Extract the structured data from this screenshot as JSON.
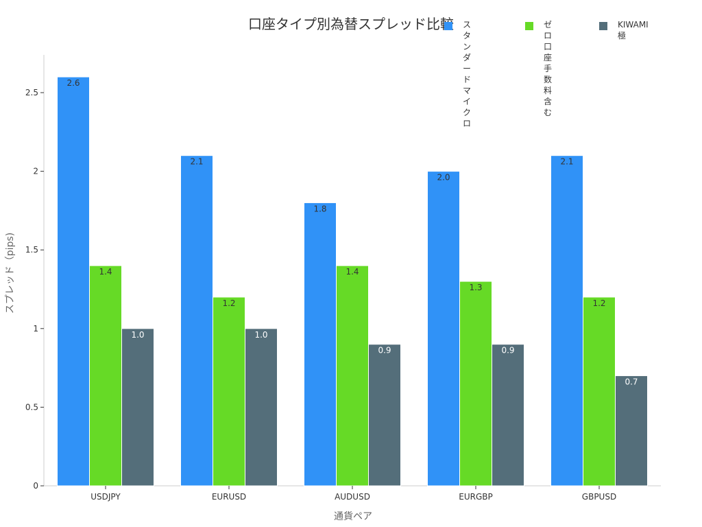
{
  "chart_data": {
    "type": "bar",
    "title": "口座タイプ別為替スプレッド比較",
    "xlabel": "通貨ペア",
    "ylabel": "スプレッド（pips)",
    "categories": [
      "USDJPY",
      "EURUSD",
      "AUDUSD",
      "EURGBP",
      "GBPUSD"
    ],
    "series": [
      {
        "name": "スタンダード\nマイクロ",
        "color": "#3092f7",
        "values": [
          2.6,
          2.1,
          1.8,
          2.0,
          2.1
        ]
      },
      {
        "name": "ゼロ口座\n手数料含む",
        "color": "#66da26",
        "values": [
          1.4,
          1.2,
          1.4,
          1.3,
          1.2
        ]
      },
      {
        "name": "KIWAMI極",
        "color": "#546e7a",
        "values": [
          1.0,
          1.0,
          0.9,
          0.9,
          0.7
        ]
      }
    ],
    "data_labels": [
      [
        "2.6",
        "2.1",
        "1.8",
        "2.0",
        "2.1"
      ],
      [
        "1.4",
        "1.2",
        "1.4",
        "1.3",
        "1.2"
      ],
      [
        "1.0",
        "1.0",
        "0.9",
        "0.9",
        "0.7"
      ]
    ],
    "y_ticks": [
      "0",
      "0.5",
      "1",
      "1.5",
      "2",
      "2.5"
    ],
    "ylim": [
      0,
      2.74
    ],
    "grid": false,
    "legend_position": "top-right"
  }
}
